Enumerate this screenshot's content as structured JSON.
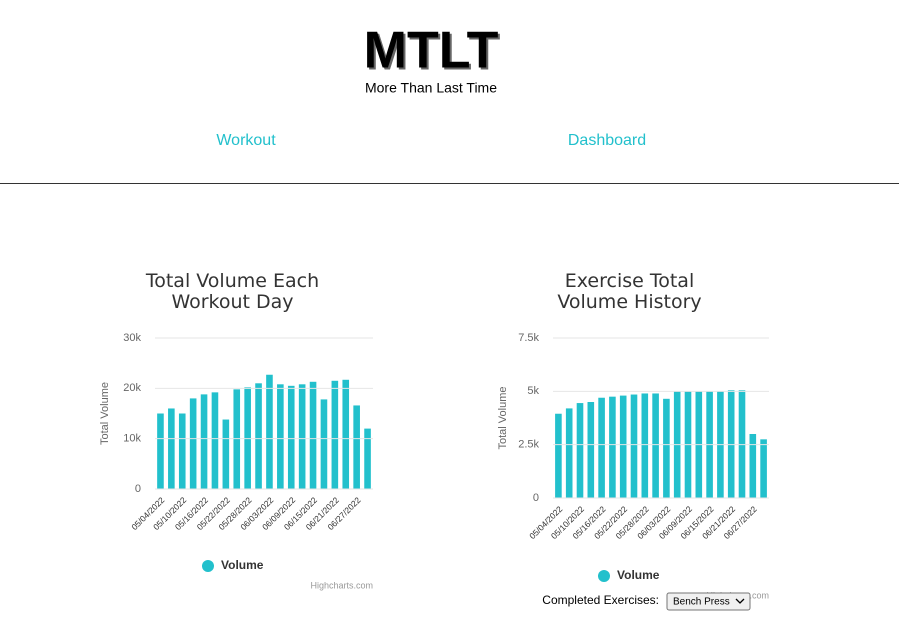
{
  "header": {
    "title": "MTLT",
    "subtitle": "More Than Last Time"
  },
  "nav": [
    "Workout",
    "Dashboard"
  ],
  "chart_data": [
    {
      "type": "bar",
      "title": "Total Volume Each Workout Day",
      "y_axis_label": "Total Volume",
      "legend": "Volume",
      "credits": "Highcharts.com",
      "color": "#22c0cc",
      "grid": true,
      "categories": [
        "05/04/2022",
        null,
        "05/10/2022",
        null,
        "05/16/2022",
        null,
        "05/22/2022",
        null,
        "05/28/2022",
        null,
        "06/03/2022",
        null,
        "06/09/2022",
        null,
        "06/15/2022",
        null,
        "06/21/2022",
        null,
        "06/27/2022",
        null
      ],
      "values": [
        15000,
        16000,
        15000,
        18000,
        18800,
        19200,
        13800,
        19800,
        20200,
        21000,
        22700,
        20800,
        20500,
        20800,
        21300,
        17800,
        21500,
        21700,
        16600,
        12000
      ],
      "ylim": [
        0,
        30000
      ],
      "yticks": [
        0,
        {
          "value": 10000,
          "label": "10k"
        },
        {
          "value": 20000,
          "label": "20k"
        },
        {
          "value": 30000,
          "label": "30k"
        }
      ]
    },
    {
      "type": "bar",
      "title": "Exercise Total Volume History",
      "y_axis_label": "Total Volume",
      "legend": "Volume",
      "credits": "Highcharts.com",
      "color": "#22c0cc",
      "grid": true,
      "categories": [
        "05/04/2022",
        null,
        "05/10/2022",
        null,
        "05/16/2022",
        null,
        "05/22/2022",
        null,
        "05/28/2022",
        null,
        "06/03/2022",
        null,
        "06/09/2022",
        null,
        "06/15/2022",
        null,
        "06/21/2022",
        null,
        "06/27/2022",
        null
      ],
      "values": [
        3950,
        4200,
        4450,
        4500,
        4700,
        4750,
        4800,
        4850,
        4900,
        4900,
        4650,
        5000,
        5000,
        5000,
        5000,
        5000,
        5050,
        5050,
        3000,
        2750
      ],
      "ylim": [
        0,
        7500
      ],
      "yticks": [
        0,
        {
          "value": 2500,
          "label": "2.5k"
        },
        {
          "value": 5000,
          "label": "5k"
        },
        {
          "value": 7500,
          "label": "7.5k"
        }
      ]
    }
  ],
  "controls": {
    "label": "Completed Exercises:",
    "selected": "Bench Press"
  }
}
